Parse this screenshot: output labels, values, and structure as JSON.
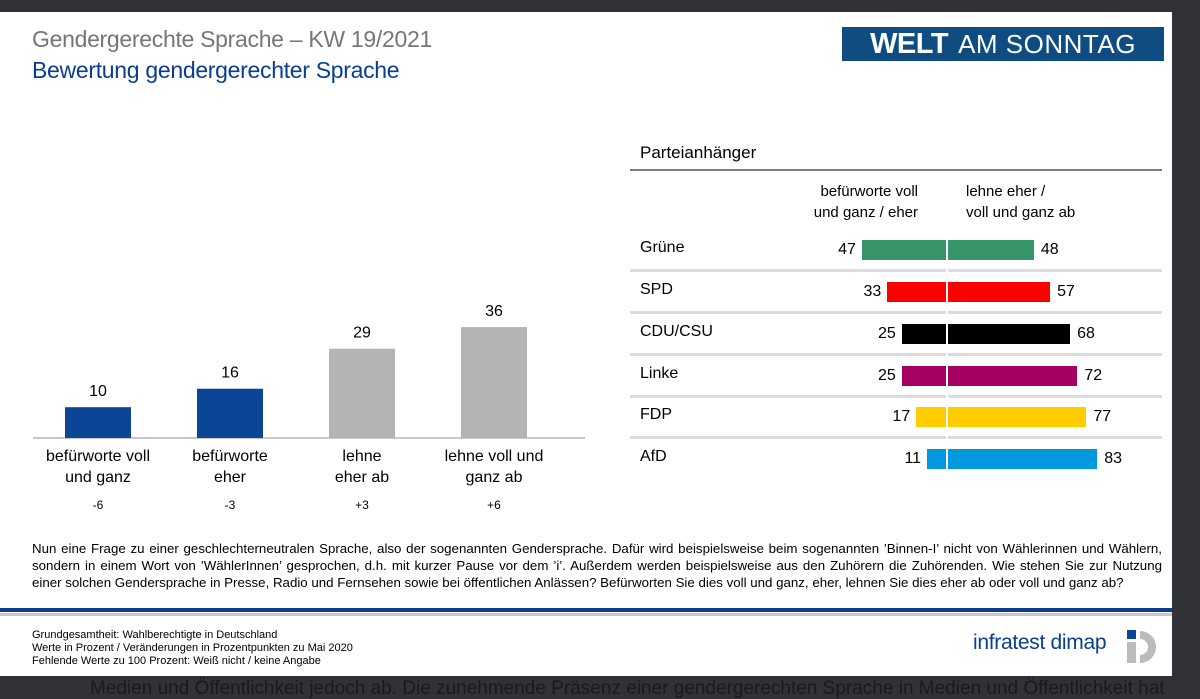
{
  "header": {
    "title": "Gendergerechte Sprache – KW 19/2021",
    "subtitle": "Bewertung gendergerechter Sprache",
    "logo_bold": "WELT",
    "logo_rest": "AM SONNTAG"
  },
  "chart_data": [
    {
      "type": "bar",
      "title": "Bewertung gendergerechter Sprache",
      "categories": [
        [
          "befürworte voll",
          "und ganz"
        ],
        [
          "befürworte",
          "eher"
        ],
        [
          "lehne",
          "eher ab"
        ],
        [
          "lehne voll und",
          "ganz ab"
        ]
      ],
      "values": [
        10,
        16,
        29,
        36
      ],
      "changes": [
        "-6",
        "-3",
        "+3",
        "+6"
      ],
      "colors": [
        "#0a4596",
        "#0a4596",
        "#b4b4b4",
        "#b4b4b4"
      ],
      "ylim": [
        0,
        40
      ],
      "unit": "Prozent"
    },
    {
      "type": "bar",
      "orientation": "horizontal-diverging",
      "title": "Parteianhänger",
      "column_headers": [
        [
          "befürworte voll",
          "und ganz / eher"
        ],
        [
          "lehne eher /",
          "voll und ganz ab"
        ]
      ],
      "categories": [
        "Grüne",
        "SPD",
        "CDU/CSU",
        "Linke",
        "FDP",
        "AfD"
      ],
      "series": [
        {
          "name": "befürworte voll und ganz / eher",
          "values": [
            47,
            33,
            25,
            25,
            17,
            11
          ]
        },
        {
          "name": "lehne eher / voll und ganz ab",
          "values": [
            48,
            57,
            68,
            72,
            77,
            83
          ]
        }
      ],
      "colors": [
        "#36966a",
        "#ff0000",
        "#000000",
        "#a50062",
        "#ffcc00",
        "#0099e0"
      ],
      "xlim": [
        0,
        100
      ]
    }
  ],
  "question": "Nun eine Frage zu einer geschlechterneutralen  Sprache, also der sogenannten  Gendersprache. Dafür wird beispielsweise beim sogenannten  ’Binnen-I’ nicht von Wählerinnen  und Wählern,  sondern  in einem Wort von ’WählerInnen’  gesprochen, d.h.  mit kurzer  Pause vor dem ’i’. Außerdem werden beispielsweise aus den Zuhörern die Zuhörenden.  Wie stehen  Sie zur Nutzung  einer solchen Gendersprache in Presse, Radio und Fernsehen sowie bei öffentlichen  Anlässen? Befürworten  Sie dies voll und ganz,  eher,  lehnen  Sie dies eher ab oder voll und ganz ab?",
  "footer": {
    "line1": "Grundgesamtheit:  Wahlberechtigte in Deutschland",
    "line2": "Werte in Prozent / Veränderungen  in Prozentpunkten zu Mai 2020",
    "line3": "Fehlende  Werte zu 100 Prozent: Weiß nicht / keine Angabe",
    "source_logo": "infratest dimap"
  },
  "background_text": "Medien und Öffentlichkeit jedoch ab. Die zunehmende Präsenz einer gendergerechten Sprache in Medien und Öffentlichkeit hat"
}
